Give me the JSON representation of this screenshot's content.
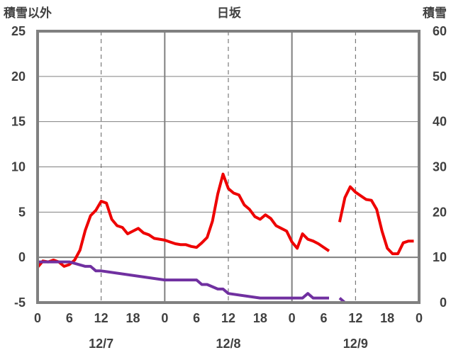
{
  "chart_data": {
    "type": "line",
    "title": "日坂",
    "left_axis_label": "積雪以外",
    "right_axis_label": "積雪",
    "left_ylim": [
      -5,
      25
    ],
    "left_yticks": [
      25,
      20,
      15,
      10,
      5,
      0,
      -5
    ],
    "right_ylim": [
      0,
      60
    ],
    "right_yticks": [
      60,
      50,
      40,
      30,
      20,
      10,
      0
    ],
    "xlim": [
      0,
      72
    ],
    "x_tick_labels": [
      "0",
      "6",
      "12",
      "18",
      "0",
      "6",
      "12",
      "18",
      "0",
      "6",
      "12",
      "18",
      "0"
    ],
    "date_labels": [
      {
        "hour": 12,
        "label": "12/7"
      },
      {
        "hour": 36,
        "label": "12/8"
      },
      {
        "hour": 60,
        "label": "12/9"
      }
    ],
    "grid": {
      "zero_line": true,
      "day_lines": true,
      "noon_lines_dashed": true
    },
    "colors": {
      "temperature": "#ee0000",
      "snow": "#7030a0",
      "axis": "#808080",
      "text": "#404040"
    },
    "series": [
      {
        "axis": "left",
        "color": "#ee0000",
        "segments": [
          {
            "x": [
              0,
              1,
              2,
              3,
              4,
              5,
              6,
              7,
              8,
              9,
              10,
              11,
              12,
              13,
              14,
              15,
              16,
              17,
              18,
              19,
              20,
              21,
              22,
              23,
              24,
              25,
              26,
              27,
              28,
              29,
              30,
              31,
              32,
              33,
              34,
              35,
              36,
              37,
              38,
              39,
              40,
              41,
              42,
              43,
              44,
              45,
              46,
              47,
              48,
              49,
              50,
              51,
              52,
              53,
              54,
              55
            ],
            "y": [
              -1.1,
              -0.4,
              -0.5,
              -0.3,
              -0.5,
              -1.0,
              -0.8,
              -0.3,
              0.8,
              3.0,
              4.6,
              5.2,
              6.2,
              6.0,
              4.2,
              3.5,
              3.3,
              2.6,
              2.9,
              3.2,
              2.7,
              2.5,
              2.1,
              2.0,
              1.9,
              1.7,
              1.5,
              1.4,
              1.4,
              1.2,
              1.1,
              1.6,
              2.2,
              4.0,
              7.0,
              9.2,
              7.6,
              7.1,
              6.9,
              5.8,
              5.3,
              4.5,
              4.2,
              4.7,
              4.3,
              3.5,
              3.2,
              2.9,
              1.7,
              1.0,
              2.6,
              2.0,
              1.8,
              1.5,
              1.1,
              0.7
            ]
          },
          {
            "x": [
              57,
              58,
              59,
              60,
              61,
              62,
              63,
              64,
              65,
              66,
              67,
              68,
              69,
              70,
              71
            ],
            "y": [
              3.9,
              6.6,
              7.8,
              7.2,
              6.8,
              6.4,
              6.3,
              5.3,
              2.9,
              1.0,
              0.4,
              0.4,
              1.6,
              1.8,
              1.8
            ]
          }
        ]
      },
      {
        "axis": "right",
        "color": "#7030a0",
        "segments": [
          {
            "x": [
              0,
              6,
              9,
              10,
              11,
              12,
              24,
              25,
              30,
              31,
              32,
              34,
              35,
              36,
              42,
              46,
              47,
              48,
              49,
              50,
              51,
              52,
              55
            ],
            "y": [
              9,
              9,
              8,
              8,
              7,
              7,
              5,
              5,
              5,
              4,
              4,
              3,
              3,
              2,
              1,
              1,
              1,
              1,
              1,
              1,
              2,
              1,
              1
            ]
          },
          {
            "x": [
              57,
              58,
              71
            ],
            "y": [
              1,
              0,
              0
            ]
          }
        ]
      }
    ]
  }
}
